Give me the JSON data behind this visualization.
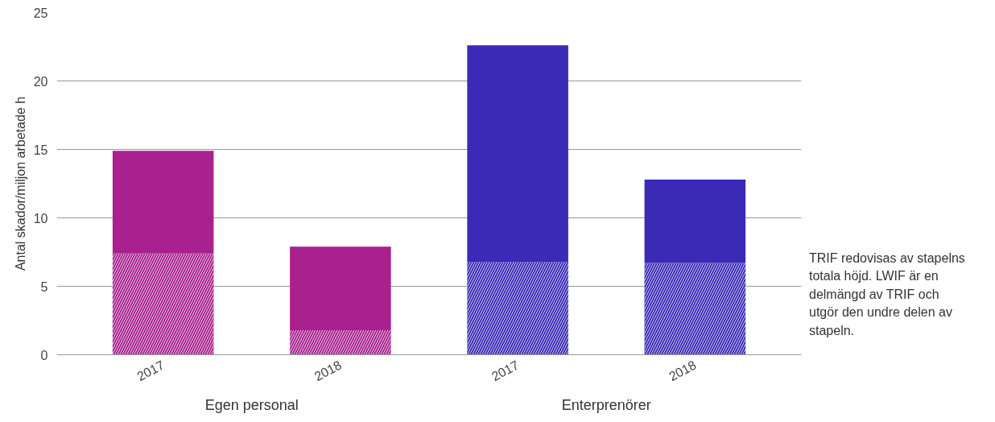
{
  "chart_data": {
    "type": "bar",
    "stacked": true,
    "ylabel": "Antal skador/miljon arbetade h",
    "categories": [
      "2017",
      "2018",
      "2017",
      "2018"
    ],
    "series": [
      {
        "colors": [
          "#a8218e",
          "#a8218e",
          "#3a2ab5",
          "#3a2ab5"
        ],
        "values": [
          7.4,
          1.8,
          6.8,
          6.7
        ]
      },
      {
        "colors": [
          "#a8218e",
          "#a8218e",
          "#3a2ab5",
          "#3a2ab5"
        ],
        "values": [
          7.5,
          6.1,
          15.8,
          6.1
        ]
      }
    ],
    "ylim": [
      0,
      25
    ],
    "yticks": [
      0,
      5,
      10,
      15,
      20,
      25
    ],
    "grid": "y",
    "annotations": [
      "Egen personal",
      "Enterprenörer",
      "TRIF redovisas av stapelns totala höjd. LWIF är en delmängd av TRIF och utgör den undre delen av stapeln."
    ]
  }
}
